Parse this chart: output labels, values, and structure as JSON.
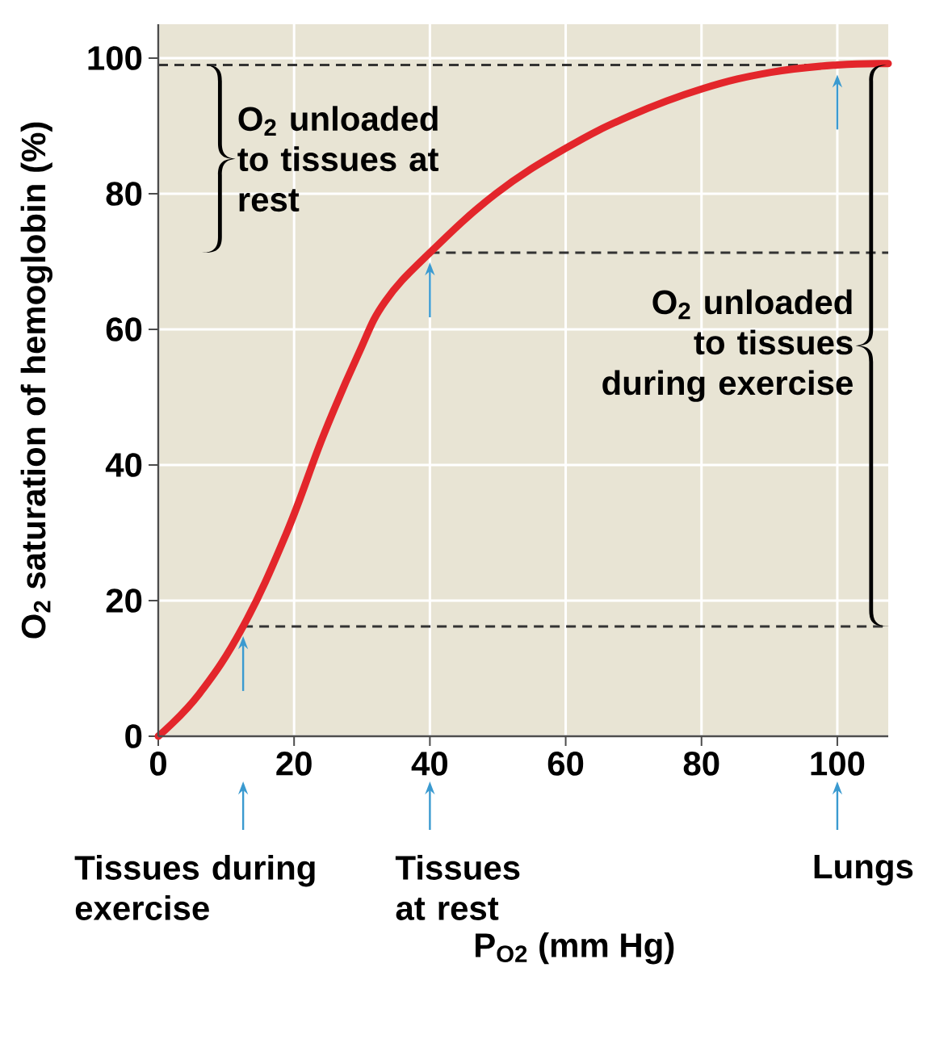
{
  "chart_data": {
    "type": "line",
    "xlabel": "P$_{O2}$ (mm Hg)",
    "ylabel": "O$_{2}$ saturation of hemoglobin (%)",
    "xlim": [
      0,
      107.5
    ],
    "ylim": [
      0,
      105
    ],
    "xticks": [
      0,
      20,
      40,
      60,
      80,
      100
    ],
    "yticks": [
      0,
      20,
      40,
      60,
      80,
      100
    ],
    "grid": true,
    "series": [
      {
        "color": "#e3262b",
        "x": [
          0,
          6,
          12.5,
          18.9,
          24.3,
          29.4,
          33.4,
          40,
          49.7,
          60,
          69.5,
          80.2,
          90.2,
          100,
          107.5
        ],
        "values": [
          0,
          6.2,
          16.2,
          30,
          44.3,
          56.2,
          64.1,
          71.3,
          80,
          86.7,
          91.5,
          95.5,
          97.9,
          99,
          99.2
        ]
      }
    ],
    "ref_lines": [
      {
        "axis": "y",
        "value": 16.2,
        "color": "#333333",
        "line_style": "dashed"
      },
      {
        "axis": "y",
        "value": 71.3,
        "color": "#333333",
        "line_style": "dashed"
      },
      {
        "axis": "y",
        "value": 99,
        "color": "#333333",
        "line_style": "dashed"
      }
    ],
    "annotations": [
      "O$_{2}$ unloaded to tissues at rest",
      "O$_{2}$ unloaded to tissues during exercise",
      "Tissues during exercise",
      "Tissues at rest",
      "Lungs"
    ]
  }
}
